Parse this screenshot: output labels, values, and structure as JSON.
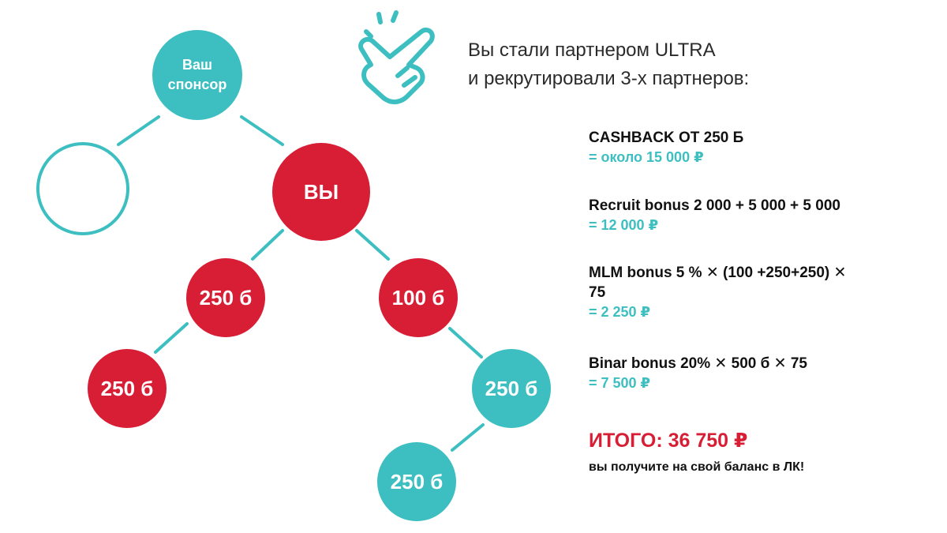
{
  "colors": {
    "teal": "#3dbfc1",
    "red": "#d81e35",
    "text": "#111111"
  },
  "intro": {
    "line1": "Вы стали партнером ULTRA",
    "line2": "и рекрутировали  3-х партнеров:"
  },
  "icon": "tap-hand-icon",
  "tree": {
    "sponsor": {
      "line1": "Ваш",
      "line2": "спонсор"
    },
    "you": "ВЫ",
    "left_child": "250 б",
    "right_child": "100 б",
    "left_grandchild": "250 б",
    "right_grandchild": "250 б",
    "right_great_grandchild": "250 б"
  },
  "bonuses": [
    {
      "title": "CASHBACK ОТ 250 Б",
      "value": "= около 15 000 ₽"
    },
    {
      "title": "Recruit bonus 2 000 + 5 000 + 5 000",
      "value": "= 12 000 ₽"
    },
    {
      "title": "MLM bonus 5 % ✕   (100 +250+250) ✕",
      "title2": "75",
      "value": "= 2 250 ₽"
    },
    {
      "title": "Binar bonus 20% ✕    500 б  ✕     75",
      "value": "= 7 500 ₽"
    }
  ],
  "total": {
    "label": "ИТОГО: 36 750 ₽",
    "note": "вы получите на свой баланс в ЛК!"
  }
}
